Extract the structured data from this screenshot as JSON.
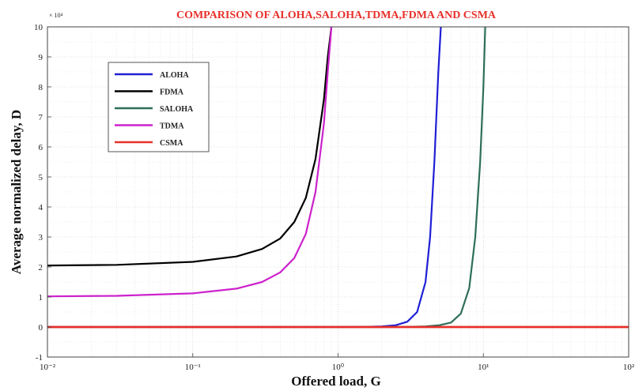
{
  "chart_data": {
    "type": "line",
    "title": "COMPARISON OF ALOHA,SALOHA,TDMA,FDMA AND CSMA",
    "xlabel": "Offered load, G",
    "ylabel": "Average normalized delay, D",
    "xscale": "log",
    "xlim": [
      0.01,
      100
    ],
    "ylim": [
      -1,
      10
    ],
    "y_multiplier_label": "× 10⁴",
    "x_tick_labels": [
      "10⁻²",
      "10⁻¹",
      "10⁰",
      "10¹",
      "10²"
    ],
    "x_ticks": [
      0.01,
      0.1,
      1,
      10,
      100
    ],
    "y_ticks": [
      -1,
      0,
      1,
      2,
      3,
      4,
      5,
      6,
      7,
      8,
      9,
      10
    ],
    "y_tick_labels": [
      "-1",
      "0",
      "1",
      "2",
      "3",
      "4",
      "5",
      "6",
      "7",
      "8",
      "9",
      "10"
    ],
    "grid": true,
    "legend_position": "top-left",
    "series": [
      {
        "name": "ALOHA",
        "color": "#1f1fd6",
        "x": [
          0.01,
          1.0,
          1.5,
          2.0,
          2.5,
          3.0,
          3.5,
          4.0,
          4.3,
          4.6,
          4.9,
          5.1
        ],
        "y": [
          0,
          0,
          0.005,
          0.02,
          0.06,
          0.18,
          0.5,
          1.5,
          3.0,
          5.5,
          8.5,
          10
        ]
      },
      {
        "name": "FDMA",
        "color": "#000000",
        "x": [
          0.01,
          0.03,
          0.1,
          0.2,
          0.3,
          0.4,
          0.5,
          0.6,
          0.7,
          0.8,
          0.85,
          0.9
        ],
        "y": [
          2.05,
          2.07,
          2.17,
          2.35,
          2.6,
          2.95,
          3.5,
          4.3,
          5.6,
          7.6,
          9.0,
          10
        ]
      },
      {
        "name": "SALOHA",
        "color": "#2e6e5a",
        "x": [
          0.01,
          2.0,
          3.0,
          4.0,
          5.0,
          6.0,
          7.0,
          8.0,
          8.8,
          9.5,
          10.0,
          10.3
        ],
        "y": [
          0,
          0,
          0.005,
          0.02,
          0.06,
          0.15,
          0.45,
          1.3,
          3.0,
          5.5,
          8.0,
          10
        ]
      },
      {
        "name": "TDMA",
        "color": "#cc22cc",
        "x": [
          0.01,
          0.03,
          0.1,
          0.2,
          0.3,
          0.4,
          0.5,
          0.6,
          0.7,
          0.8,
          0.85,
          0.9
        ],
        "y": [
          1.02,
          1.04,
          1.12,
          1.28,
          1.5,
          1.82,
          2.3,
          3.1,
          4.5,
          6.8,
          8.5,
          10
        ]
      },
      {
        "name": "CSMA",
        "color": "#e8302a",
        "x": [
          0.01,
          100
        ],
        "y": [
          0,
          0
        ]
      }
    ]
  }
}
